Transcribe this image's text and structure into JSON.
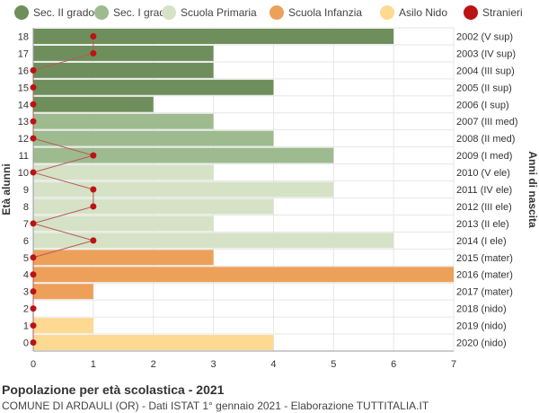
{
  "chart_data": {
    "type": "bar",
    "orientation": "horizontal",
    "title": "Popolazione per età scolastica - 2021",
    "subtitle": "COMUNE DI ARDAULI (OR) - Dati ISTAT 1° gennaio 2021 - Elaborazione TUTTITALIA.IT",
    "ylabel_left": "Età alunni",
    "ylabel_right": "Anni di nascita",
    "xlim": [
      0,
      7
    ],
    "x_ticks": [
      0,
      1,
      2,
      3,
      4,
      5,
      6,
      7
    ],
    "grid": true,
    "legend_position": "top",
    "legend": [
      {
        "label": "Sec. II grado",
        "color": "#6e8f5c"
      },
      {
        "label": "Sec. I grado",
        "color": "#9dbb8e"
      },
      {
        "label": "Scuola Primaria",
        "color": "#d5e2c6"
      },
      {
        "label": "Scuola Infanzia",
        "color": "#eda05a"
      },
      {
        "label": "Asilo Nido",
        "color": "#fdd992"
      },
      {
        "label": "Stranieri",
        "color": "#bb1414"
      }
    ],
    "rows": [
      {
        "age": "18",
        "year": "2002 (V sup)",
        "value": 6,
        "group": 0,
        "stranieri": 1
      },
      {
        "age": "17",
        "year": "2003 (IV sup)",
        "value": 3,
        "group": 0,
        "stranieri": 1
      },
      {
        "age": "16",
        "year": "2004 (III sup)",
        "value": 3,
        "group": 0,
        "stranieri": 0
      },
      {
        "age": "15",
        "year": "2005 (II sup)",
        "value": 4,
        "group": 0,
        "stranieri": 0
      },
      {
        "age": "14",
        "year": "2006 (I sup)",
        "value": 2,
        "group": 0,
        "stranieri": 0
      },
      {
        "age": "13",
        "year": "2007 (III med)",
        "value": 3,
        "group": 1,
        "stranieri": 0
      },
      {
        "age": "12",
        "year": "2008 (II med)",
        "value": 4,
        "group": 1,
        "stranieri": 0
      },
      {
        "age": "11",
        "year": "2009 (I med)",
        "value": 5,
        "group": 1,
        "stranieri": 1
      },
      {
        "age": "10",
        "year": "2010 (V ele)",
        "value": 3,
        "group": 2,
        "stranieri": 0
      },
      {
        "age": "9",
        "year": "2011 (IV ele)",
        "value": 5,
        "group": 2,
        "stranieri": 1
      },
      {
        "age": "8",
        "year": "2012 (III ele)",
        "value": 4,
        "group": 2,
        "stranieri": 1
      },
      {
        "age": "7",
        "year": "2013 (II ele)",
        "value": 3,
        "group": 2,
        "stranieri": 0
      },
      {
        "age": "6",
        "year": "2014 (I ele)",
        "value": 6,
        "group": 2,
        "stranieri": 1
      },
      {
        "age": "5",
        "year": "2015 (mater)",
        "value": 3,
        "group": 3,
        "stranieri": 0
      },
      {
        "age": "4",
        "year": "2016 (mater)",
        "value": 7,
        "group": 3,
        "stranieri": 0
      },
      {
        "age": "3",
        "year": "2017 (mater)",
        "value": 1,
        "group": 3,
        "stranieri": 0
      },
      {
        "age": "2",
        "year": "2018 (nido)",
        "value": 0,
        "group": 4,
        "stranieri": 0
      },
      {
        "age": "1",
        "year": "2019 (nido)",
        "value": 1,
        "group": 4,
        "stranieri": 0
      },
      {
        "age": "0",
        "year": "2020 (nido)",
        "value": 4,
        "group": 4,
        "stranieri": 0
      }
    ]
  }
}
